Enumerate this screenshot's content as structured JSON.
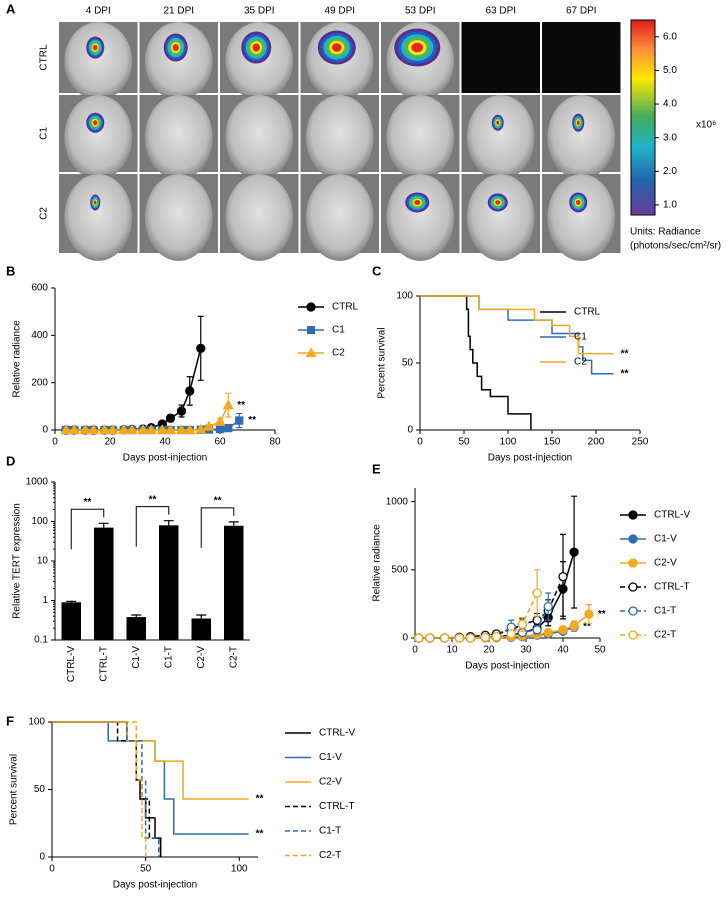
{
  "panel_a": {
    "panel": "A",
    "columns": [
      "4 DPI",
      "21 DPI",
      "35 DPI",
      "49 DPI",
      "53 DPI",
      "63 DPI",
      "67 DPI"
    ],
    "rows": [
      "CTRL",
      "C1",
      "C2"
    ],
    "colorbar": {
      "lim": [
        0.7,
        6.5
      ],
      "ticks": [
        {
          "value": 1,
          "label": "1.0"
        },
        {
          "value": 2,
          "label": "2.0"
        },
        {
          "value": 3,
          "label": "3.0"
        },
        {
          "value": 4,
          "label": "4.0"
        },
        {
          "value": 5,
          "label": "5.0"
        },
        {
          "value": 6,
          "label": "6.0"
        }
      ],
      "scale_label": "x10⁶",
      "units": [
        "Units: Radiance",
        "(photons/sec/cm²/sr)"
      ]
    }
  },
  "chart_data": [
    {
      "panel": "B",
      "type": "line",
      "xlabel": "Days post-injection",
      "ylabel": "Relative radiance",
      "xlim": [
        0,
        80
      ],
      "xticks": [
        0,
        20,
        40,
        60,
        80
      ],
      "ylim": [
        0,
        600
      ],
      "yticks": [
        0,
        200,
        400,
        600
      ],
      "legend": "right",
      "x": [
        4,
        7,
        11,
        14,
        18,
        21,
        25,
        28,
        32,
        35,
        39,
        42,
        46,
        49,
        53,
        56,
        60,
        63,
        67
      ],
      "series": [
        {
          "name": "CTRL",
          "color": "#000000",
          "marker": "circle",
          "open": false,
          "style": "solid",
          "values": [
            0,
            0,
            0,
            0,
            0,
            0,
            1,
            2,
            4,
            10,
            25,
            50,
            80,
            165,
            345,
            null,
            null,
            null,
            null
          ],
          "errors": [
            0,
            0,
            0,
            0,
            0,
            0,
            1,
            1,
            2,
            5,
            10,
            15,
            25,
            60,
            135,
            null,
            null,
            null,
            null
          ]
        },
        {
          "name": "C1",
          "color": "#2e6db4",
          "marker": "square",
          "open": false,
          "style": "solid",
          "annotation": "**",
          "values": [
            0,
            0,
            0,
            0,
            0,
            0,
            0,
            0,
            0,
            0,
            0,
            0,
            0,
            0,
            1,
            2,
            4,
            8,
            40
          ],
          "errors": [
            0,
            0,
            0,
            0,
            0,
            0,
            0,
            0,
            0,
            0,
            0,
            0,
            0,
            0,
            1,
            2,
            3,
            5,
            30
          ]
        },
        {
          "name": "C2",
          "color": "#f4a81d",
          "marker": "triangle",
          "open": false,
          "style": "solid",
          "annotation": "**",
          "values": [
            0,
            0,
            0,
            0,
            0,
            0,
            0,
            0,
            0,
            0,
            0,
            0,
            0,
            0,
            2,
            15,
            35,
            105,
            null
          ],
          "errors": [
            0,
            0,
            0,
            0,
            0,
            0,
            0,
            0,
            0,
            0,
            0,
            0,
            0,
            0,
            1,
            8,
            15,
            50,
            null
          ]
        }
      ]
    },
    {
      "panel": "C",
      "type": "survival",
      "xlabel": "Days post-injection",
      "ylabel": "Percent survival",
      "xlim": [
        0,
        250
      ],
      "xticks": [
        0,
        50,
        100,
        150,
        200,
        250
      ],
      "ylim": [
        0,
        100
      ],
      "yticks": [
        0,
        50,
        100
      ],
      "legend": "right",
      "series": [
        {
          "name": "CTRL",
          "color": "#000000",
          "style": "solid",
          "x": [
            0,
            53,
            55,
            57,
            60,
            65,
            70,
            80,
            100,
            126
          ],
          "values": [
            100,
            90,
            70,
            60,
            50,
            40,
            30,
            25,
            12,
            0
          ]
        },
        {
          "name": "C1",
          "color": "#2e6db4",
          "style": "solid",
          "annotation": "**",
          "x": [
            0,
            67,
            100,
            150,
            180,
            185,
            195,
            220
          ],
          "values": [
            100,
            90,
            82,
            72,
            62,
            52,
            42,
            42
          ]
        },
        {
          "name": "C2",
          "color": "#f4a81d",
          "style": "solid",
          "annotation": "**",
          "x": [
            0,
            67,
            130,
            150,
            170,
            180,
            220
          ],
          "values": [
            100,
            90,
            82,
            78,
            70,
            57,
            57
          ]
        }
      ]
    },
    {
      "panel": "D",
      "type": "bar",
      "ylabel": "Relative TERT expression",
      "yscale": "log",
      "color": "#000000",
      "ylim": [
        0.1,
        1000
      ],
      "yticks": [
        0.1,
        1,
        10,
        100,
        1000
      ],
      "categories": [
        "CTRL-V",
        "CTRL-T",
        "C1-V",
        "C1-T",
        "C2-V",
        "C2-T"
      ],
      "values": [
        0.9,
        70,
        0.38,
        80,
        0.35,
        78
      ],
      "errors": [
        0.05,
        20,
        0.05,
        25,
        0.08,
        20
      ],
      "annotations": [
        "**",
        "**",
        "**"
      ]
    },
    {
      "panel": "E",
      "type": "line",
      "xlabel": "Days post-injection",
      "ylabel": "Relative radiance",
      "xlim": [
        0,
        50
      ],
      "xticks": [
        0,
        10,
        20,
        30,
        40,
        50
      ],
      "ylim": [
        0,
        1100
      ],
      "yticks": [
        0,
        500,
        1000
      ],
      "legend": "right",
      "x": [
        1,
        4,
        8,
        12,
        15,
        19,
        22,
        26,
        29,
        33,
        36,
        40,
        43,
        47
      ],
      "series": [
        {
          "name": "CTRL-V",
          "color": "#000000",
          "marker": "circle",
          "open": false,
          "style": "solid",
          "values": [
            0,
            0,
            0,
            0,
            0,
            5,
            10,
            20,
            40,
            70,
            150,
            360,
            630,
            null
          ],
          "errors": [
            0,
            0,
            0,
            0,
            0,
            3,
            5,
            10,
            15,
            30,
            60,
            200,
            410,
            null
          ]
        },
        {
          "name": "C1-V",
          "color": "#2e6db4",
          "marker": "circle",
          "open": false,
          "style": "solid",
          "annotation": "**",
          "values": [
            0,
            0,
            0,
            0,
            0,
            0,
            2,
            5,
            10,
            20,
            30,
            50,
            80,
            null
          ],
          "errors": [
            0,
            0,
            0,
            0,
            0,
            0,
            1,
            3,
            5,
            8,
            15,
            20,
            30,
            null
          ]
        },
        {
          "name": "C2-V",
          "color": "#f4a81d",
          "marker": "circle",
          "open": false,
          "style": "solid",
          "annotation": "**",
          "values": [
            0,
            0,
            0,
            0,
            0,
            0,
            5,
            10,
            15,
            25,
            40,
            60,
            90,
            175
          ],
          "errors": [
            0,
            0,
            0,
            0,
            0,
            0,
            3,
            5,
            8,
            10,
            15,
            25,
            35,
            70
          ]
        },
        {
          "name": "CTRL-T",
          "color": "#000000",
          "marker": "circle",
          "open": true,
          "style": "dashed",
          "values": [
            0,
            0,
            0,
            5,
            10,
            20,
            30,
            60,
            100,
            130,
            200,
            450,
            null,
            null
          ],
          "errors": [
            0,
            0,
            0,
            3,
            5,
            10,
            15,
            25,
            40,
            50,
            80,
            310,
            null,
            null
          ]
        },
        {
          "name": "C1-T",
          "color": "#2e6db4",
          "marker": "circle",
          "open": true,
          "style": "dashed",
          "values": [
            0,
            0,
            0,
            0,
            0,
            5,
            10,
            80,
            40,
            60,
            230,
            null,
            null,
            null
          ],
          "errors": [
            0,
            0,
            0,
            0,
            0,
            3,
            5,
            50,
            20,
            30,
            100,
            null,
            null,
            null
          ]
        },
        {
          "name": "C2-T",
          "color": "#f4a81d",
          "marker": "circle",
          "open": true,
          "style": "dashed",
          "values": [
            0,
            0,
            0,
            0,
            0,
            5,
            10,
            30,
            100,
            330,
            null,
            null,
            null,
            null
          ],
          "errors": [
            0,
            0,
            0,
            0,
            0,
            3,
            5,
            15,
            50,
            170,
            null,
            null,
            null,
            null
          ]
        }
      ]
    },
    {
      "panel": "F",
      "type": "survival",
      "xlabel": "Days post-injection",
      "ylabel": "Percent survival",
      "xlim": [
        0,
        110
      ],
      "xticks": [
        0,
        50,
        100
      ],
      "ylim": [
        0,
        100
      ],
      "yticks": [
        0,
        50,
        100
      ],
      "legend": "right",
      "series": [
        {
          "name": "CTRL-V",
          "color": "#000000",
          "style": "solid",
          "x": [
            0,
            40,
            45,
            47,
            50,
            55,
            58
          ],
          "values": [
            100,
            86,
            57,
            43,
            29,
            14,
            0
          ]
        },
        {
          "name": "C1-V",
          "color": "#2e6db4",
          "style": "solid",
          "annotation": "**",
          "x": [
            0,
            30,
            55,
            60,
            65,
            105
          ],
          "values": [
            100,
            86,
            71,
            43,
            17,
            17
          ]
        },
        {
          "name": "C2-V",
          "color": "#f4a81d",
          "style": "solid",
          "annotation": "**",
          "x": [
            0,
            40,
            55,
            70,
            105
          ],
          "values": [
            100,
            86,
            71,
            43,
            43
          ]
        },
        {
          "name": "CTRL-T",
          "color": "#000000",
          "style": "dashed",
          "x": [
            0,
            35,
            45,
            48,
            52,
            58
          ],
          "values": [
            100,
            86,
            57,
            43,
            14,
            0
          ]
        },
        {
          "name": "C1-T",
          "color": "#2e6db4",
          "style": "dashed",
          "x": [
            0,
            40,
            48,
            50,
            57
          ],
          "values": [
            100,
            86,
            57,
            14,
            0
          ]
        },
        {
          "name": "C2-T",
          "color": "#f4a81d",
          "style": "dashed",
          "x": [
            0,
            45,
            48,
            50
          ],
          "values": [
            100,
            57,
            14,
            0
          ]
        }
      ]
    }
  ]
}
